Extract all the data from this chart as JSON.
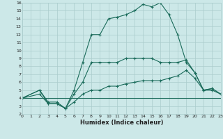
{
  "xlabel": "Humidex (Indice chaleur)",
  "bg_color": "#cce8e8",
  "grid_color": "#aacccc",
  "line_color": "#1a6b5a",
  "ylim": [
    2,
    16
  ],
  "xlim": [
    0,
    23
  ],
  "yticks": [
    2,
    3,
    4,
    5,
    6,
    7,
    8,
    9,
    10,
    11,
    12,
    13,
    14,
    15,
    16
  ],
  "xticks": [
    0,
    1,
    2,
    3,
    4,
    5,
    6,
    7,
    8,
    9,
    10,
    11,
    12,
    13,
    14,
    15,
    16,
    17,
    18,
    19,
    20,
    21,
    22,
    23
  ],
  "line1_x": [
    0,
    2,
    3,
    4,
    5,
    6,
    7,
    8,
    9,
    10,
    11,
    12,
    13,
    14,
    15,
    16,
    17,
    18,
    19,
    20,
    21,
    22,
    23
  ],
  "line1_y": [
    4,
    5,
    3.5,
    3.5,
    2.7,
    5.0,
    8.5,
    12.0,
    12.0,
    14.0,
    14.2,
    14.5,
    15.0,
    15.8,
    15.5,
    16.0,
    14.5,
    12.0,
    8.5,
    7.2,
    5.0,
    5.2,
    4.5
  ],
  "line2_x": [
    0,
    2,
    3,
    4,
    5,
    6,
    7,
    8,
    9,
    10,
    11,
    12,
    13,
    14,
    15,
    16,
    17,
    18,
    19,
    20,
    21,
    22,
    23
  ],
  "line2_y": [
    4,
    5,
    3.3,
    3.3,
    2.7,
    4.5,
    6.0,
    8.5,
    8.5,
    8.5,
    8.5,
    9.0,
    9.0,
    9.0,
    9.0,
    8.5,
    8.5,
    8.5,
    8.8,
    7.2,
    5.0,
    5.2,
    4.5
  ],
  "line3_x": [
    0,
    23
  ],
  "line3_y": [
    4,
    4
  ],
  "line4_x": [
    0,
    2,
    3,
    4,
    5,
    6,
    7,
    8,
    9,
    10,
    11,
    12,
    13,
    14,
    15,
    16,
    17,
    18,
    19,
    20,
    21,
    22,
    23
  ],
  "line4_y": [
    4,
    4.5,
    3.3,
    3.3,
    2.7,
    3.5,
    4.5,
    5.0,
    5.0,
    5.5,
    5.5,
    5.8,
    6.0,
    6.2,
    6.2,
    6.2,
    6.5,
    6.8,
    7.5,
    6.5,
    5.0,
    5.0,
    4.5
  ]
}
